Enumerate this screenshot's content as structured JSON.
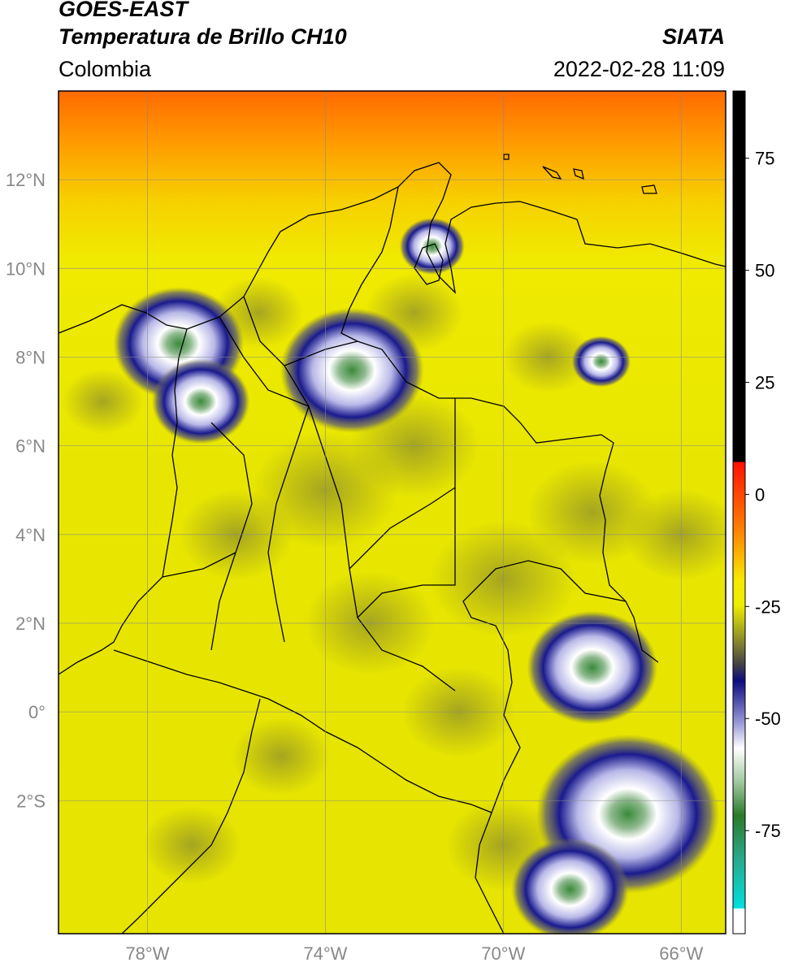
{
  "header": {
    "satellite": "GOES-EAST",
    "product": "Temperatura de Brillo CH10",
    "region": "Colombia",
    "agency": "SIATA",
    "datetime": "2022-02-28 11:09"
  },
  "map": {
    "lon_range": [
      -80,
      -65
    ],
    "lat_range": [
      -5,
      14
    ],
    "lat_ticks": [
      {
        "value": 12,
        "label": "12°N"
      },
      {
        "value": 10,
        "label": "10°N"
      },
      {
        "value": 8,
        "label": "8°N"
      },
      {
        "value": 6,
        "label": "6°N"
      },
      {
        "value": 4,
        "label": "4°N"
      },
      {
        "value": 2,
        "label": "2°N"
      },
      {
        "value": 0,
        "label": "0°"
      },
      {
        "value": -2,
        "label": "2°S"
      }
    ],
    "lon_ticks": [
      {
        "value": -78,
        "label": "78°W"
      },
      {
        "value": -74,
        "label": "74°W"
      },
      {
        "value": -70,
        "label": "70°W"
      },
      {
        "value": -66,
        "label": "66°W"
      }
    ],
    "grid": true
  },
  "colorbar": {
    "ticks": [
      {
        "value": 75,
        "label": "75"
      },
      {
        "value": 50,
        "label": "50"
      },
      {
        "value": 25,
        "label": "25"
      },
      {
        "value": 0,
        "label": "0"
      },
      {
        "value": -25,
        "label": "-25"
      },
      {
        "value": -50,
        "label": "-50"
      },
      {
        "value": -75,
        "label": "-75"
      }
    ],
    "colors": {
      "black": "#000000",
      "red": "#ff2000",
      "orange": "#ff8c00",
      "yellow": "#f0f000",
      "olive": "#8f8f2a",
      "navy": "#10108a",
      "white": "#ffffff",
      "green": "#2f8a2f",
      "cyan": "#00d8d8"
    }
  },
  "clouds": [
    {
      "lon": -77.3,
      "lat": 8.3,
      "size": 1.0
    },
    {
      "lon": -76.8,
      "lat": 7.0,
      "size": 0.75
    },
    {
      "lon": -73.4,
      "lat": 7.7,
      "size": 1.1
    },
    {
      "lon": -71.6,
      "lat": 10.5,
      "size": 0.5
    },
    {
      "lon": -68.0,
      "lat": 1.0,
      "size": 1.0
    },
    {
      "lon": -67.2,
      "lat": -2.3,
      "size": 1.4
    },
    {
      "lon": -68.5,
      "lat": -4.0,
      "size": 0.9
    },
    {
      "lon": -67.8,
      "lat": 7.9,
      "size": 0.45
    }
  ]
}
